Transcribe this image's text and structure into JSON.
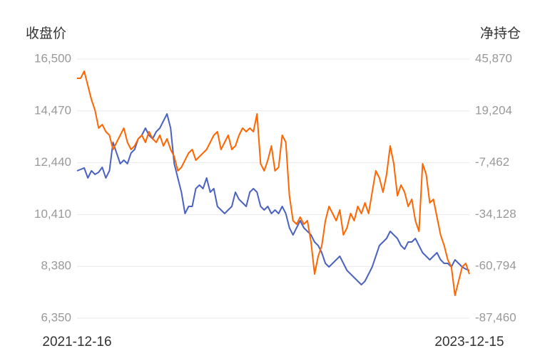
{
  "chart_data": {
    "type": "line",
    "ylabel": "收盘价",
    "y2label": "净持仓",
    "categories": [
      "2021-12-16",
      null,
      null,
      null,
      null,
      null,
      null,
      null,
      null,
      null,
      null,
      null,
      null,
      null,
      null,
      null,
      null,
      null,
      null,
      null,
      null,
      null,
      null,
      null,
      null,
      null,
      null,
      null,
      null,
      null,
      null,
      null,
      null,
      null,
      null,
      null,
      null,
      null,
      null,
      null,
      null,
      null,
      null,
      null,
      null,
      null,
      null,
      null,
      null,
      null,
      null,
      null,
      null,
      null,
      null,
      null,
      null,
      null,
      null,
      null,
      null,
      null,
      null,
      null,
      null,
      null,
      null,
      null,
      null,
      null,
      null,
      null,
      null,
      null,
      null,
      null,
      null,
      null,
      null,
      null,
      null,
      null,
      null,
      null,
      null,
      null,
      null,
      null,
      null,
      null,
      null,
      null,
      null,
      null,
      null,
      null,
      null,
      null,
      null,
      null,
      null,
      null,
      null,
      null,
      null,
      null,
      null,
      null,
      null,
      "2023-12-15"
    ],
    "series": [
      {
        "color": "#4a62c0",
        "values": [
          12122,
          12178,
          12234,
          11843,
          12122,
          11983,
          12066,
          12261,
          11843,
          12122,
          13237,
          12819,
          12401,
          12540,
          12401,
          12819,
          12959,
          13377,
          13516,
          13795,
          13516,
          13377,
          13656,
          13795,
          14074,
          14353,
          13795,
          12401,
          11843,
          11285,
          10449,
          10728,
          10728,
          11425,
          11564,
          11425,
          11843,
          11285,
          11425,
          10728,
          10588,
          10449,
          10588,
          10728,
          11285,
          11006,
          10867,
          10728,
          11285,
          11425,
          11285,
          10728,
          10588,
          10728,
          10449,
          10588,
          10449,
          10728,
          10449,
          9891,
          9612,
          9891,
          10170,
          9891,
          9752,
          9612,
          9333,
          9194,
          8915,
          8497,
          8358,
          8497,
          8636,
          8776,
          8497,
          8218,
          8079,
          7939,
          7800,
          7661,
          7800,
          8079,
          8358,
          8776,
          9194,
          9333,
          9473,
          9752,
          9612,
          9473,
          9194,
          9055,
          9333,
          9333,
          9473,
          9194,
          8915,
          8776,
          8636,
          8776,
          8915,
          8636,
          8497,
          8497,
          8358,
          8636,
          8497,
          8358,
          8274,
          8218
        ]
      },
      {
        "color": "#ff6600",
        "axis": "y2",
        "values": [
          35980,
          35980,
          39643,
          32317,
          24991,
          19496,
          10339,
          12170,
          8507,
          6676,
          -650,
          3013,
          6676,
          10339,
          3013,
          -650,
          1181,
          4844,
          6676,
          3013,
          8507,
          4844,
          3013,
          6676,
          1181,
          4844,
          -650,
          -4313,
          -11639,
          -9808,
          -6145,
          -2482,
          -650,
          -6145,
          -4313,
          -2482,
          -650,
          3013,
          6676,
          8507,
          -650,
          3013,
          6676,
          -650,
          1181,
          6676,
          10339,
          8507,
          10339,
          8507,
          17665,
          -7976,
          -11639,
          -6145,
          1181,
          -11639,
          -9808,
          6676,
          3013,
          -24460,
          -37280,
          -39112,
          -35449,
          -39112,
          -37280,
          -48269,
          -64753,
          -55595,
          -50101,
          -37280,
          -29954,
          -33617,
          -37280,
          -31786,
          -44606,
          -40943,
          -33617,
          -37280,
          -29954,
          -33617,
          -28123,
          -33617,
          -22628,
          -11639,
          -15302,
          -22628,
          -13471,
          1181,
          -7976,
          -24460,
          -18965,
          -22628,
          -29954,
          -26291,
          -37280,
          -42775,
          -7976,
          -13471,
          -28123,
          -26291,
          -35449,
          -44606,
          -50101,
          -57427,
          -61090,
          -75742,
          -68416,
          -61090,
          -59258,
          -64753
        ]
      }
    ],
    "ylim": [
      6350,
      16500
    ],
    "yticks": [
      {
        "value": 6350,
        "label": "6,350"
      },
      {
        "value": 8380,
        "label": "8,380"
      },
      {
        "value": 10410,
        "label": "10,410"
      },
      {
        "value": 12440,
        "label": "12,440"
      },
      {
        "value": 14470,
        "label": "14,470"
      },
      {
        "value": 16500,
        "label": "16,500"
      }
    ],
    "y2lim": [
      -87460,
      45870
    ],
    "y2ticks": [
      {
        "value": -87460,
        "label": "-87,460"
      },
      {
        "value": -60794,
        "label": "-60,794"
      },
      {
        "value": -34128,
        "label": "-34,128"
      },
      {
        "value": -7462,
        "label": "-7,462"
      },
      {
        "value": 19204,
        "label": "19,204"
      },
      {
        "value": 45870,
        "label": "45,870"
      }
    ],
    "grid": true
  }
}
